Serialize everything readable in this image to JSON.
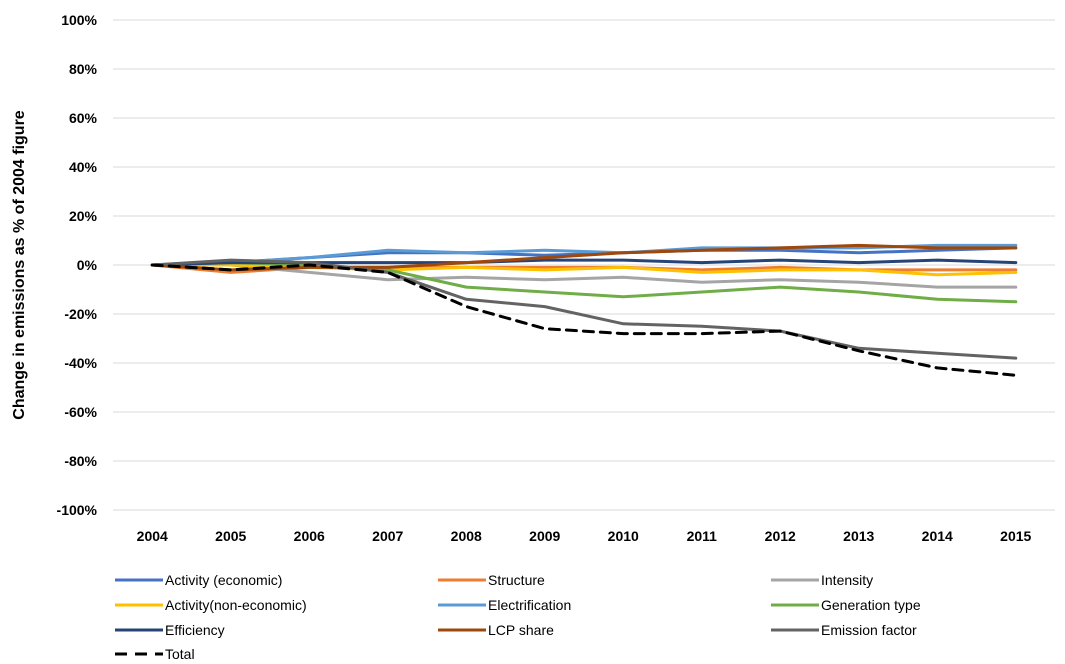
{
  "chart_data": {
    "type": "line",
    "title": "",
    "xlabel": "",
    "ylabel": "Change in emissions as % of 2004 figure",
    "x": [
      "2004",
      "2005",
      "2006",
      "2007",
      "2008",
      "2009",
      "2010",
      "2011",
      "2012",
      "2013",
      "2014",
      "2015"
    ],
    "ylim": [
      -100,
      100
    ],
    "yticks": [
      100,
      80,
      60,
      40,
      20,
      0,
      -20,
      -40,
      -60,
      -80,
      -100
    ],
    "ytick_labels": [
      "100%",
      "80%",
      "60%",
      "40%",
      "20%",
      "0%",
      "-20%",
      "-40%",
      "-60%",
      "-80%",
      "-100%"
    ],
    "grid": true,
    "legend_position": "bottom",
    "series": [
      {
        "name": "Activity (economic)",
        "color": "#4472c4",
        "dash": false,
        "values": [
          0,
          1,
          3,
          5,
          5,
          4,
          5,
          6,
          6,
          5,
          6,
          7
        ]
      },
      {
        "name": "Structure",
        "color": "#ed7d31",
        "dash": false,
        "values": [
          0,
          -3,
          -1,
          -1,
          -1,
          -1,
          -1,
          -2,
          -1,
          -2,
          -2,
          -2
        ]
      },
      {
        "name": "Intensity",
        "color": "#a5a5a5",
        "dash": false,
        "values": [
          0,
          0,
          -3,
          -6,
          -5,
          -6,
          -5,
          -7,
          -6,
          -7,
          -9,
          -9
        ]
      },
      {
        "name": "Activity(non-economic)",
        "color": "#ffc000",
        "dash": false,
        "values": [
          0,
          0,
          -1,
          -2,
          -1,
          -2,
          -1,
          -3,
          -2,
          -2,
          -4,
          -3
        ]
      },
      {
        "name": "Electrification",
        "color": "#5b9bd5",
        "dash": false,
        "values": [
          0,
          1,
          3,
          6,
          5,
          6,
          5,
          7,
          7,
          7,
          8,
          8
        ]
      },
      {
        "name": "Generation type",
        "color": "#70ad47",
        "dash": false,
        "values": [
          0,
          1,
          0,
          -2,
          -9,
          -11,
          -13,
          -11,
          -9,
          -11,
          -14,
          -15
        ]
      },
      {
        "name": "Efficiency",
        "color": "#264478",
        "dash": false,
        "values": [
          0,
          1,
          1,
          1,
          1,
          2,
          2,
          1,
          2,
          1,
          2,
          1
        ]
      },
      {
        "name": "LCP share",
        "color": "#9e480e",
        "dash": false,
        "values": [
          0,
          -2,
          -1,
          -1,
          1,
          3,
          5,
          6,
          7,
          8,
          7,
          7
        ]
      },
      {
        "name": "Emission factor",
        "color": "#636363",
        "dash": false,
        "values": [
          0,
          2,
          1,
          -3,
          -14,
          -17,
          -24,
          -25,
          -27,
          -34,
          -36,
          -38
        ]
      },
      {
        "name": "Total",
        "color": "#000000",
        "dash": true,
        "values": [
          0,
          -2,
          0,
          -3,
          -17,
          -26,
          -28,
          -28,
          -27,
          -35,
          -42,
          -45
        ]
      }
    ]
  }
}
